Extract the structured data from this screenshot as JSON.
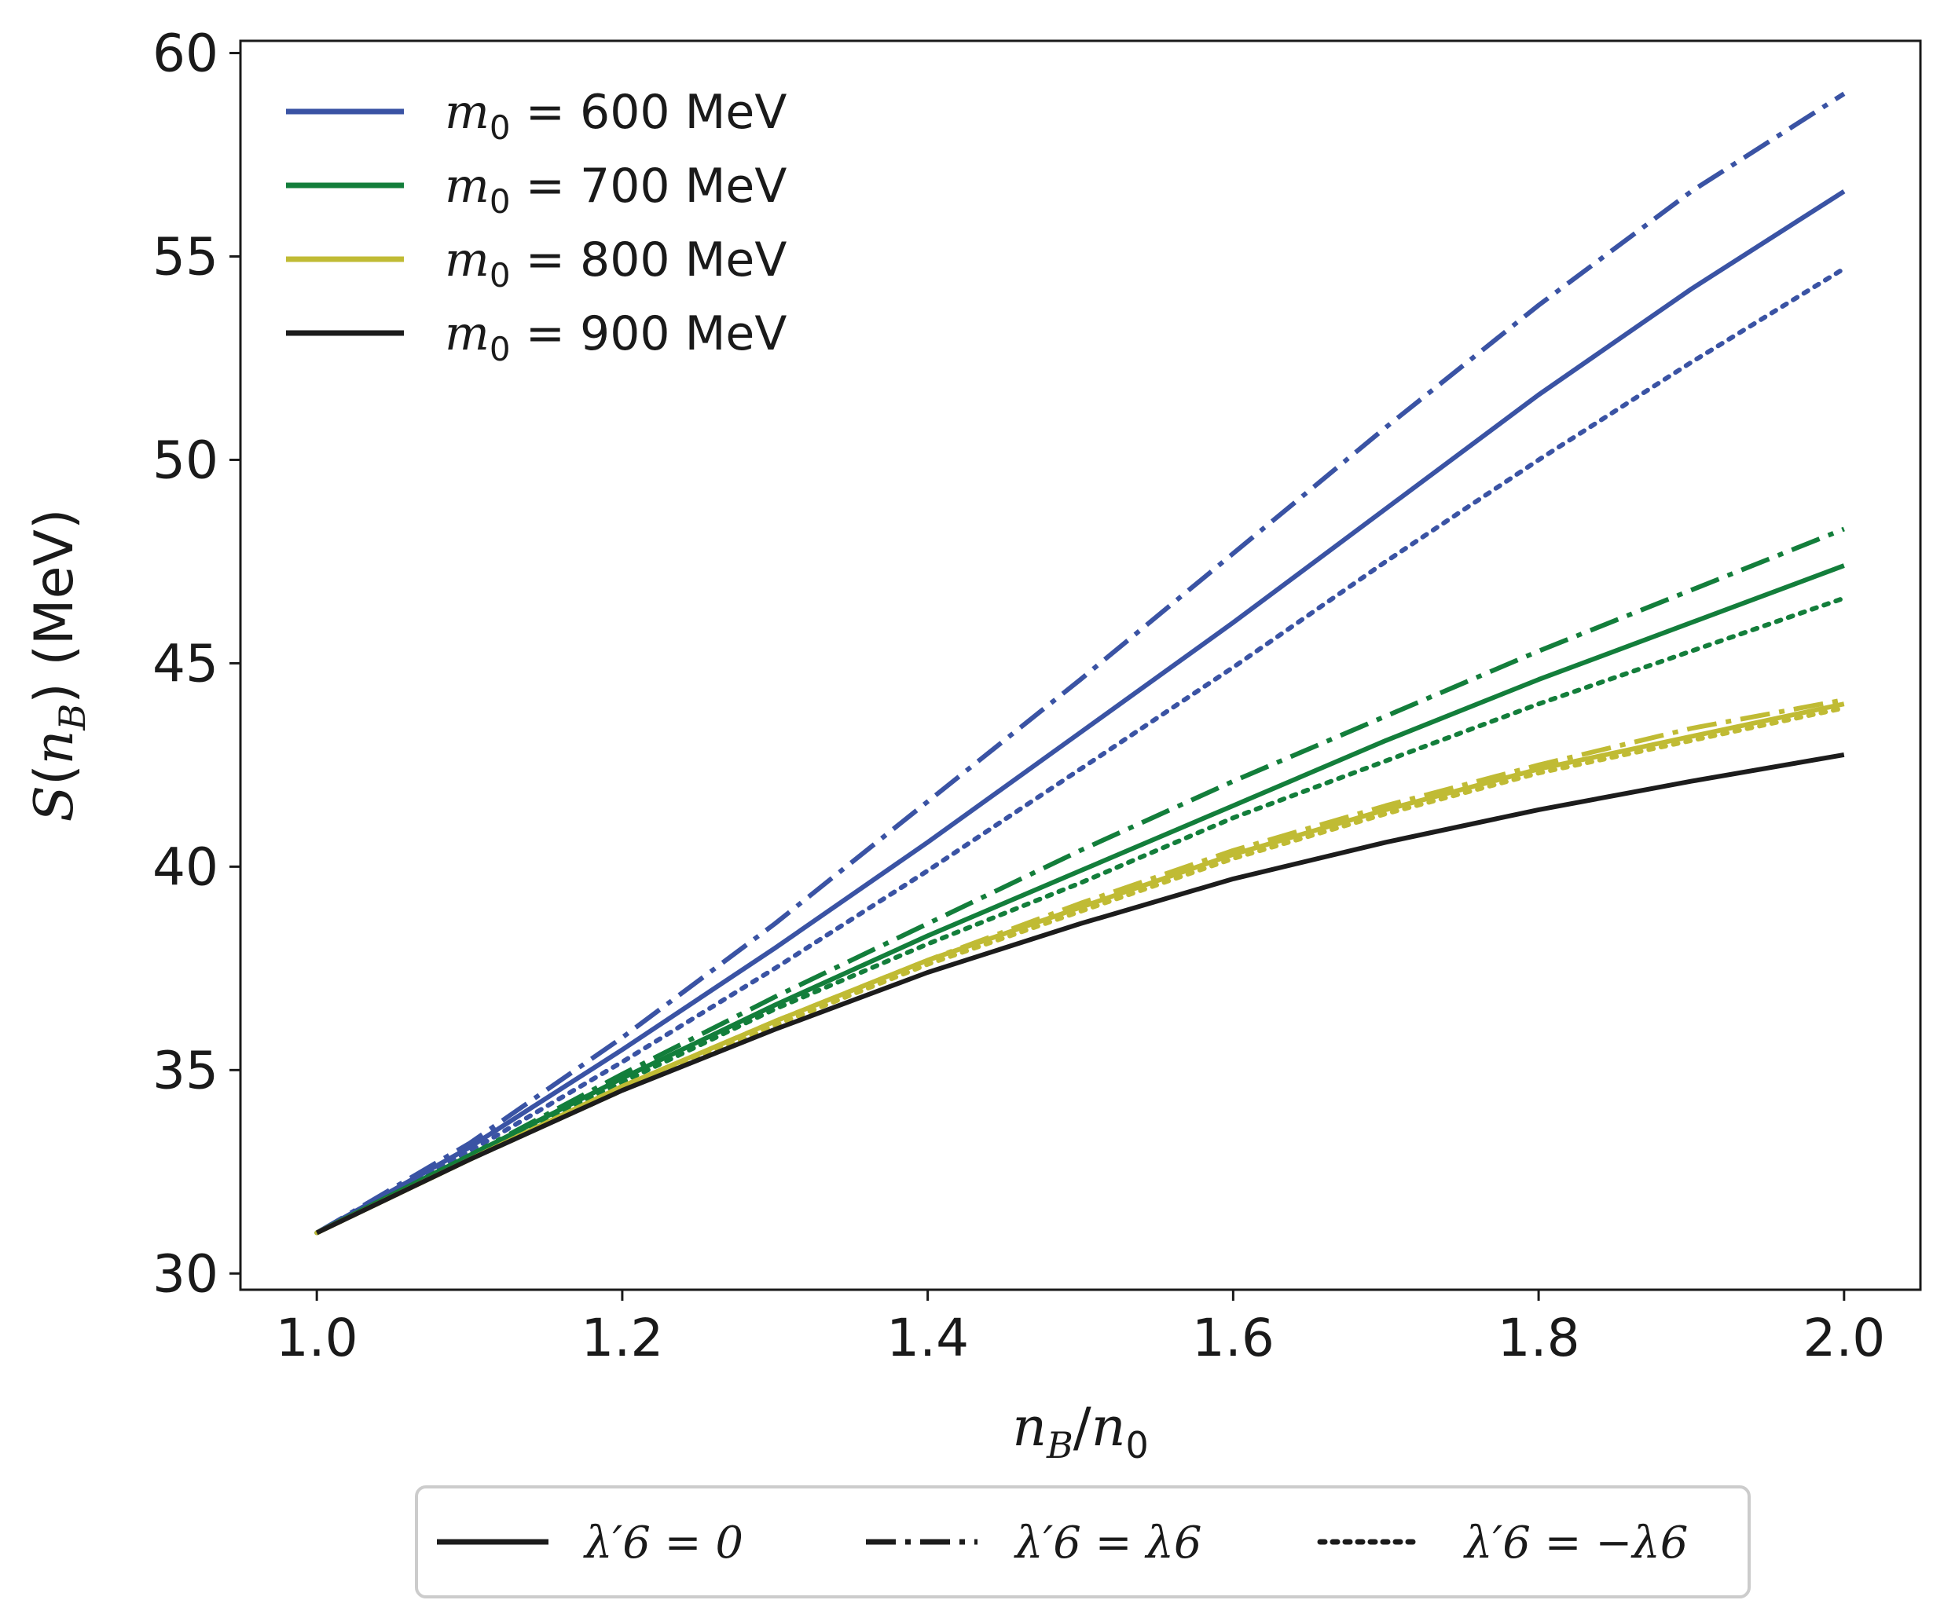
{
  "chart_data": {
    "type": "line",
    "title": "",
    "xlabel": "n_B/n_0",
    "ylabel": "S(n_B) (MeV)",
    "xlim": [
      0.95,
      2.05
    ],
    "ylim": [
      29.6,
      60.3
    ],
    "x_ticks": [
      1.0,
      1.2,
      1.4,
      1.6,
      1.8,
      2.0
    ],
    "x_tick_labels": [
      "1.0",
      "1.2",
      "1.4",
      "1.6",
      "1.8",
      "2.0"
    ],
    "y_ticks": [
      30,
      35,
      40,
      45,
      50,
      55,
      60
    ],
    "y_tick_labels": [
      "30",
      "35",
      "40",
      "45",
      "50",
      "55",
      "60"
    ],
    "grid": false,
    "x": [
      1.0,
      1.1,
      1.2,
      1.3,
      1.4,
      1.5,
      1.6,
      1.7,
      1.8,
      1.9,
      2.0
    ],
    "series": [
      {
        "name": "m0 = 600 MeV, λ6' = 0",
        "mass": "600 MeV",
        "style": "solid",
        "color": "#3a53a4",
        "values": [
          31.0,
          33.1,
          35.5,
          38.0,
          40.6,
          43.3,
          46.0,
          48.8,
          51.6,
          54.2,
          56.6
        ]
      },
      {
        "name": "m0 = 600 MeV, λ6' = λ6",
        "mass": "600 MeV",
        "style": "dashdot",
        "color": "#3a53a4",
        "values": [
          31.0,
          33.2,
          35.8,
          38.6,
          41.6,
          44.6,
          47.7,
          50.8,
          53.8,
          56.6,
          59.0
        ]
      },
      {
        "name": "m0 = 600 MeV, λ6' = -λ6",
        "mass": "600 MeV",
        "style": "dotted",
        "color": "#3a53a4",
        "values": [
          31.0,
          33.0,
          35.2,
          37.5,
          39.9,
          42.4,
          44.9,
          47.5,
          50.0,
          52.4,
          54.7
        ]
      },
      {
        "name": "m0 = 700 MeV, λ6' = 0",
        "mass": "700 MeV",
        "style": "solid",
        "color": "#137e3b",
        "values": [
          31.0,
          32.9,
          34.8,
          36.6,
          38.3,
          39.9,
          41.5,
          43.1,
          44.6,
          46.0,
          47.4
        ]
      },
      {
        "name": "m0 = 700 MeV, λ6' = λ6",
        "mass": "700 MeV",
        "style": "dashdot",
        "color": "#137e3b",
        "values": [
          31.0,
          32.9,
          34.9,
          36.8,
          38.6,
          40.4,
          42.1,
          43.7,
          45.3,
          46.8,
          48.3
        ]
      },
      {
        "name": "m0 = 700 MeV, λ6' = -λ6",
        "mass": "700 MeV",
        "style": "dotted",
        "color": "#137e3b",
        "values": [
          31.0,
          32.9,
          34.7,
          36.5,
          38.1,
          39.6,
          41.2,
          42.6,
          44.0,
          45.3,
          46.6
        ]
      },
      {
        "name": "m0 = 800 MeV, λ6' = 0",
        "mass": "800 MeV",
        "style": "solid",
        "color": "#c0bb34",
        "values": [
          31.0,
          32.8,
          34.6,
          36.2,
          37.7,
          39.0,
          40.3,
          41.4,
          42.4,
          43.2,
          44.0
        ]
      },
      {
        "name": "m0 = 800 MeV, λ6' = λ6",
        "mass": "800 MeV",
        "style": "dashdot",
        "color": "#c0bb34",
        "values": [
          31.0,
          32.8,
          34.6,
          36.2,
          37.7,
          39.1,
          40.4,
          41.5,
          42.5,
          43.4,
          44.1
        ]
      },
      {
        "name": "m0 = 800 MeV, λ6' = -λ6",
        "mass": "800 MeV",
        "style": "dotted",
        "color": "#c0bb34",
        "values": [
          31.0,
          32.8,
          34.5,
          36.1,
          37.6,
          38.9,
          40.2,
          41.3,
          42.3,
          43.1,
          43.9
        ]
      },
      {
        "name": "m0 = 900 MeV, λ6' = 0",
        "mass": "900 MeV",
        "style": "solid",
        "color": "#1c1c1c",
        "values": [
          31.0,
          32.8,
          34.5,
          36.0,
          37.4,
          38.6,
          39.7,
          40.6,
          41.4,
          42.1,
          42.75
        ]
      }
    ],
    "legend": {
      "placement": "upper-left",
      "entries": [
        {
          "symbol": "m",
          "subscript": "0",
          "text": " = 600 MeV",
          "color": "#3a53a4"
        },
        {
          "symbol": "m",
          "subscript": "0",
          "text": " = 700 MeV",
          "color": "#137e3b"
        },
        {
          "symbol": "m",
          "subscript": "0",
          "text": " = 800 MeV",
          "color": "#c0bb34"
        },
        {
          "symbol": "m",
          "subscript": "0",
          "text": " = 900 MeV",
          "color": "#1c1c1c"
        }
      ]
    },
    "style_legend": {
      "placement": "bottom-center",
      "entries": [
        {
          "style": "solid",
          "label": "λ′6 = 0"
        },
        {
          "style": "dashdot",
          "label": "λ′6 = λ6"
        },
        {
          "style": "dotted",
          "label": "λ′6 = −λ6"
        }
      ]
    }
  }
}
